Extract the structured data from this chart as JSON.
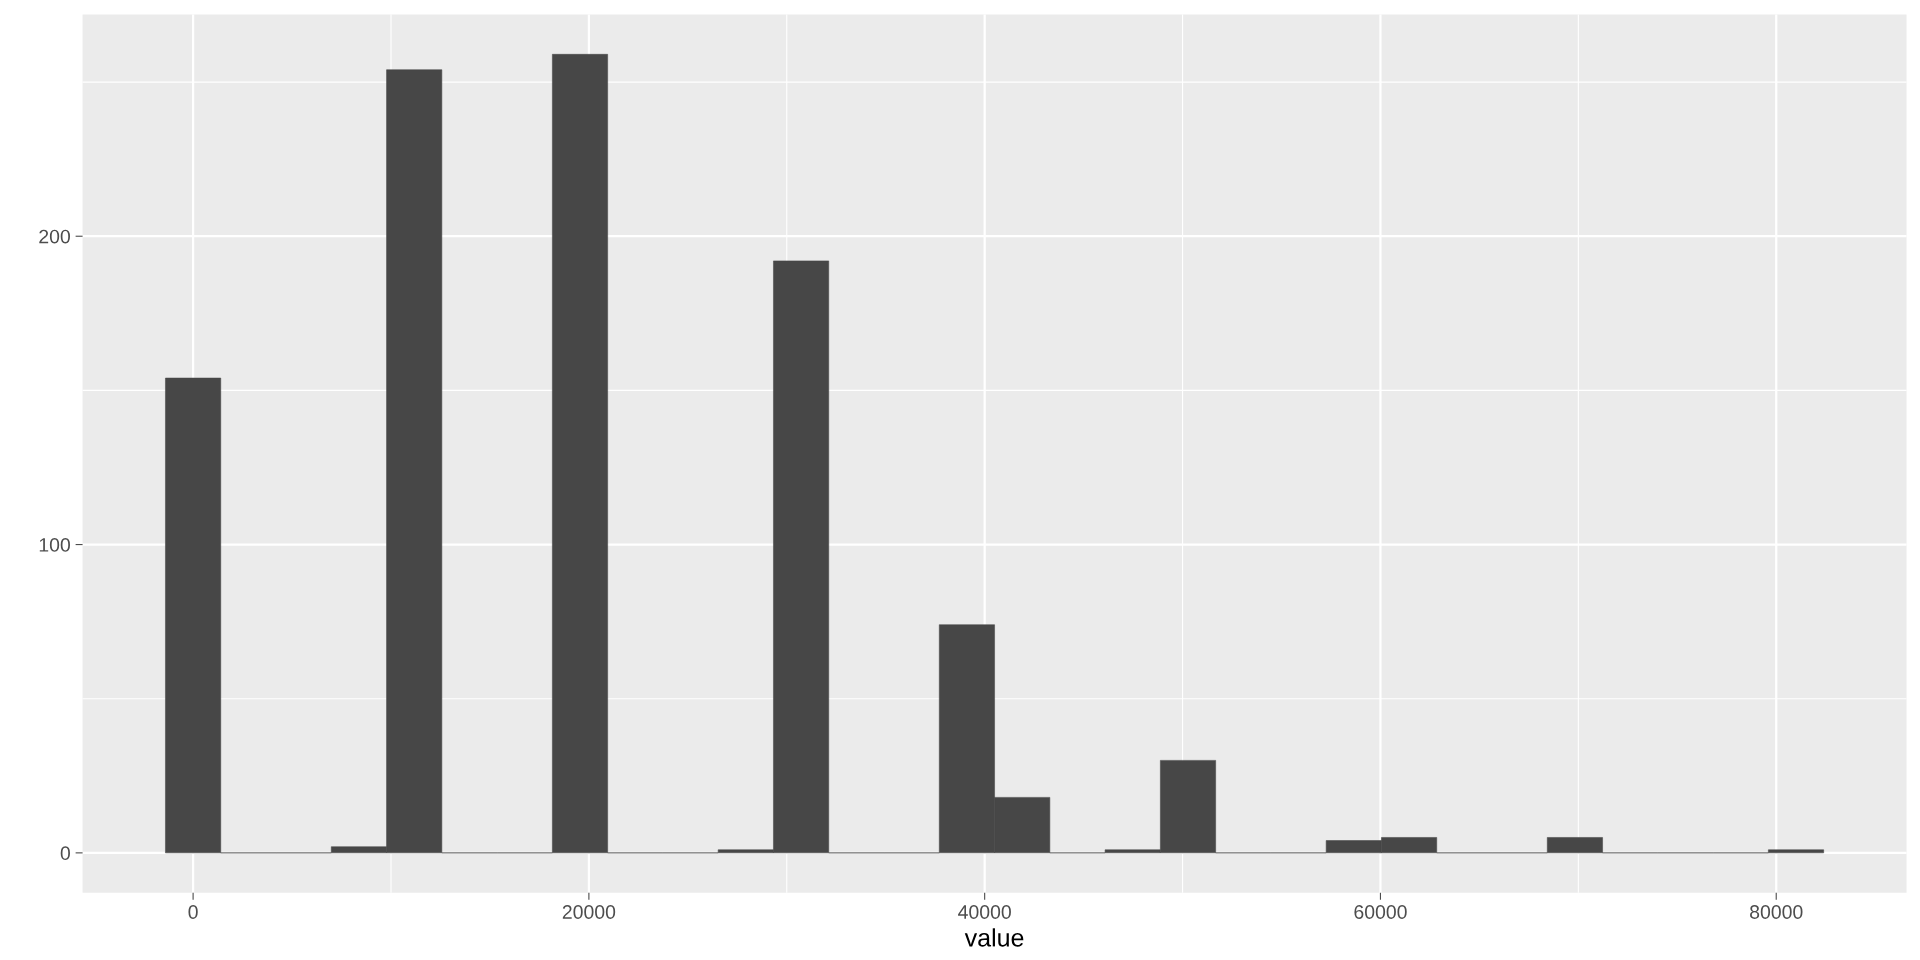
{
  "chart_data": {
    "type": "histogram",
    "xlabel": "value",
    "bins": [
      -1397,
      1397,
      4190,
      6983,
      9776,
      12569,
      15362,
      18155,
      20948,
      23741,
      26534,
      29327,
      32120,
      34914,
      37707,
      40500,
      43293,
      46086,
      48879,
      51672,
      54465,
      57258,
      60051,
      62844,
      65638,
      68431,
      71224,
      74017,
      76810,
      79603,
      82397
    ],
    "values": [
      154,
      0,
      0,
      2,
      254,
      0,
      0,
      259,
      0,
      0,
      1,
      192,
      0,
      0,
      74,
      18,
      0,
      1,
      30,
      0,
      0,
      4,
      5,
      0,
      0,
      5,
      0,
      0,
      0,
      1
    ],
    "color": "#474747",
    "xlim": [
      -5586,
      86586
    ],
    "ylim": [
      -12.95,
      271.95
    ],
    "xticks": [
      0,
      20000,
      40000,
      60000,
      80000
    ],
    "yticks": [
      0,
      100,
      200
    ],
    "grid": true
  }
}
